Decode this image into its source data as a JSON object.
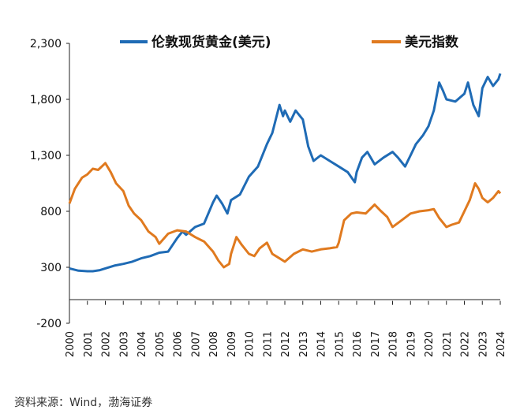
{
  "chart_data": {
    "type": "line",
    "title": "",
    "xlabel": "",
    "ylabel": "",
    "ylim": [
      -200,
      2300
    ],
    "y_ticks": [
      "2,300",
      "1,800",
      "1,300",
      "800",
      "300",
      "-200"
    ],
    "y_tick_values": [
      2300,
      1800,
      1300,
      800,
      300,
      -200
    ],
    "xlim": [
      2000,
      2024
    ],
    "x_ticks": [
      "2000",
      "2001",
      "2002",
      "2003",
      "2004",
      "2005",
      "2006",
      "2007",
      "2008",
      "2009",
      "2010",
      "2011",
      "2012",
      "2013",
      "2014",
      "2015",
      "2016",
      "2017",
      "2018",
      "2019",
      "2020",
      "2021",
      "2022",
      "2023",
      "2024"
    ],
    "x_tick_values": [
      2000,
      2001,
      2002,
      2003,
      2004,
      2005,
      2006,
      2007,
      2008,
      2009,
      2010,
      2011,
      2012,
      2013,
      2014,
      2015,
      2016,
      2017,
      2018,
      2019,
      2020,
      2021,
      2022,
      2023,
      2024
    ],
    "legend_position": "top",
    "grid": false,
    "series": [
      {
        "name": "伦敦现货黄金(美元)",
        "color": "#1f6bb5",
        "x": [
          2000,
          2000.5,
          2001,
          2001.3,
          2001.7,
          2002,
          2002.5,
          2003,
          2003.5,
          2004,
          2004.5,
          2005,
          2005.5,
          2006,
          2006.3,
          2006.5,
          2007,
          2007.5,
          2008,
          2008.2,
          2008.5,
          2008.8,
          2009,
          2009.5,
          2010,
          2010.5,
          2011,
          2011.3,
          2011.7,
          2011.9,
          2012,
          2012.3,
          2012.6,
          2013,
          2013.3,
          2013.6,
          2014,
          2014.5,
          2015,
          2015.5,
          2015.9,
          2016,
          2016.3,
          2016.6,
          2017,
          2017.5,
          2018,
          2018.3,
          2018.7,
          2019,
          2019.3,
          2019.7,
          2020,
          2020.3,
          2020.6,
          2020.8,
          2021,
          2021.5,
          2022,
          2022.2,
          2022.5,
          2022.8,
          2023,
          2023.3,
          2023.6,
          2023.9,
          2024
        ],
        "y": [
          290,
          270,
          265,
          265,
          275,
          290,
          315,
          330,
          350,
          380,
          400,
          430,
          440,
          560,
          620,
          590,
          660,
          690,
          880,
          940,
          870,
          780,
          900,
          950,
          1110,
          1200,
          1400,
          1500,
          1750,
          1650,
          1700,
          1600,
          1700,
          1620,
          1380,
          1250,
          1300,
          1250,
          1200,
          1150,
          1060,
          1150,
          1280,
          1330,
          1220,
          1280,
          1330,
          1280,
          1200,
          1300,
          1400,
          1480,
          1560,
          1700,
          1950,
          1880,
          1800,
          1780,
          1850,
          1950,
          1750,
          1650,
          1900,
          2000,
          1920,
          1980,
          2030
        ]
      },
      {
        "name": "美元指数",
        "color": "#e07a1f",
        "x": [
          2000,
          2000.3,
          2000.7,
          2001,
          2001.3,
          2001.6,
          2002,
          2002.3,
          2002.6,
          2003,
          2003.3,
          2003.6,
          2004,
          2004.4,
          2004.8,
          2005,
          2005.5,
          2006,
          2006.5,
          2007,
          2007.5,
          2008,
          2008.3,
          2008.6,
          2008.9,
          2009,
          2009.3,
          2009.6,
          2010,
          2010.3,
          2010.6,
          2011,
          2011.3,
          2011.6,
          2012,
          2012.5,
          2013,
          2013.5,
          2014,
          2014.5,
          2014.9,
          2015,
          2015.3,
          2015.7,
          2016,
          2016.5,
          2017,
          2017.3,
          2017.7,
          2018,
          2018.5,
          2019,
          2019.5,
          2020,
          2020.3,
          2020.6,
          2021,
          2021.3,
          2021.7,
          2022,
          2022.3,
          2022.6,
          2022.8,
          2023,
          2023.3,
          2023.6,
          2023.9,
          2024
        ],
        "y": [
          870,
          1000,
          1100,
          1130,
          1180,
          1170,
          1230,
          1150,
          1050,
          980,
          850,
          780,
          720,
          620,
          570,
          510,
          600,
          630,
          620,
          570,
          530,
          440,
          360,
          300,
          330,
          420,
          570,
          500,
          420,
          400,
          470,
          520,
          420,
          390,
          350,
          420,
          460,
          440,
          460,
          470,
          480,
          520,
          720,
          780,
          790,
          780,
          860,
          810,
          750,
          660,
          720,
          780,
          800,
          810,
          820,
          740,
          660,
          680,
          700,
          800,
          900,
          1050,
          1000,
          920,
          880,
          920,
          980,
          960
        ]
      }
    ]
  },
  "legend": [
    {
      "label": "伦敦现货黄金(美元)",
      "color": "#1f6bb5"
    },
    {
      "label": "美元指数",
      "color": "#e07a1f"
    }
  ],
  "source_text": "资料来源：Wind，渤海证券"
}
